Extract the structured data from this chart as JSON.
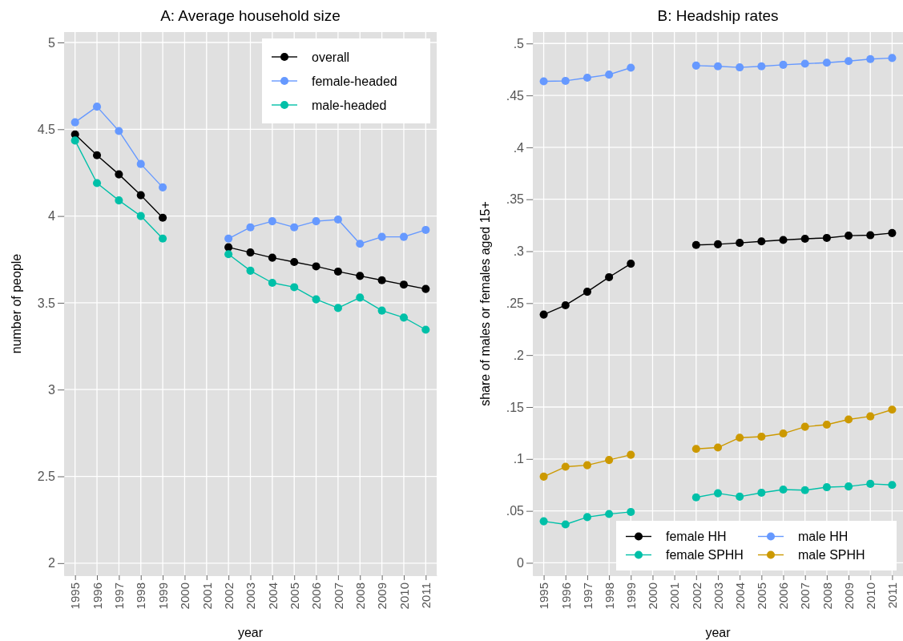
{
  "chart_data": [
    {
      "type": "line",
      "title": "A: Average household size",
      "xlabel": "year",
      "ylabel": "number of people",
      "x": [
        1995,
        1996,
        1997,
        1998,
        1999,
        2000,
        2001,
        2002,
        2003,
        2004,
        2005,
        2006,
        2007,
        2008,
        2009,
        2010,
        2011
      ],
      "xlim": [
        1994.5,
        2011.5
      ],
      "xticks": [
        1995,
        1996,
        1997,
        1998,
        1999,
        2000,
        2001,
        2002,
        2003,
        2004,
        2005,
        2006,
        2007,
        2008,
        2009,
        2010,
        2011
      ],
      "ylim": [
        1.93,
        5.06
      ],
      "yticks": [
        2,
        2.5,
        3,
        3.5,
        4,
        4.5,
        5
      ],
      "grid": true,
      "legend": "top right",
      "marker": "circle",
      "line_style": "solid",
      "series": [
        {
          "name": "overall",
          "color": "#000000",
          "values": [
            4.47,
            4.35,
            4.24,
            4.12,
            3.99,
            null,
            null,
            3.82,
            3.79,
            3.76,
            3.735,
            3.71,
            3.68,
            3.655,
            3.63,
            3.605,
            3.58
          ]
        },
        {
          "name": "female-headed",
          "color": "#6699ff",
          "values": [
            4.54,
            4.63,
            4.49,
            4.3,
            4.165,
            null,
            null,
            3.87,
            3.935,
            3.97,
            3.935,
            3.97,
            3.98,
            3.84,
            3.88,
            3.88,
            3.92
          ]
        },
        {
          "name": "male-headed",
          "color": "#00c0a8",
          "values": [
            4.435,
            4.19,
            4.09,
            4.0,
            3.87,
            null,
            null,
            3.78,
            3.685,
            3.615,
            3.59,
            3.52,
            3.47,
            3.53,
            3.455,
            3.415,
            3.345
          ]
        }
      ]
    },
    {
      "type": "line",
      "title": "B: Headship rates",
      "xlabel": "year",
      "ylabel": "share of males or females aged 15+",
      "x": [
        1995,
        1996,
        1997,
        1998,
        1999,
        2000,
        2001,
        2002,
        2003,
        2004,
        2005,
        2006,
        2007,
        2008,
        2009,
        2010,
        2011
      ],
      "xlim": [
        1994.5,
        2011.5
      ],
      "xticks": [
        1995,
        1996,
        1997,
        1998,
        1999,
        2000,
        2001,
        2002,
        2003,
        2004,
        2005,
        2006,
        2007,
        2008,
        2009,
        2010,
        2011
      ],
      "ylim": [
        -0.012,
        0.511
      ],
      "yticks": [
        0,
        {
          "value": 0.05,
          "label": ".05"
        },
        {
          "value": 0.1,
          "label": ".1"
        },
        {
          "value": 0.15,
          "label": ".15"
        },
        {
          "value": 0.2,
          "label": ".2"
        },
        {
          "value": 0.25,
          "label": ".25"
        },
        {
          "value": 0.3,
          "label": ".3"
        },
        {
          "value": 0.35,
          "label": ".35"
        },
        {
          "value": 0.4,
          "label": ".4"
        },
        {
          "value": 0.45,
          "label": ".45"
        },
        {
          "value": 0.5,
          "label": ".5"
        }
      ],
      "grid": true,
      "legend": "bottom right",
      "marker": "circle",
      "line_style": "solid",
      "series": [
        {
          "name": "female HH",
          "color": "#000000",
          "values": [
            0.239,
            0.248,
            0.261,
            0.275,
            0.288,
            null,
            null,
            0.306,
            0.3067,
            0.308,
            0.3095,
            0.3108,
            0.312,
            0.3128,
            0.315,
            0.3154,
            0.3175
          ]
        },
        {
          "name": "male HH",
          "color": "#6699ff",
          "values": [
            0.4636,
            0.464,
            0.467,
            0.47,
            0.4767,
            null,
            null,
            0.4787,
            0.478,
            0.477,
            0.478,
            0.4795,
            0.4805,
            0.4815,
            0.483,
            0.485,
            0.486
          ]
        },
        {
          "name": "female SPHH",
          "color": "#00c0a8",
          "values": [
            0.04,
            0.037,
            0.044,
            0.047,
            0.049,
            null,
            null,
            0.063,
            0.067,
            0.0637,
            0.0675,
            0.0705,
            0.07,
            0.0728,
            0.0735,
            0.076,
            0.075
          ]
        },
        {
          "name": "male SPHH",
          "color": "#cc9900",
          "values": [
            0.083,
            0.0925,
            0.094,
            0.099,
            0.104,
            null,
            null,
            0.1097,
            0.111,
            0.1205,
            0.1215,
            0.1245,
            0.131,
            0.133,
            0.138,
            0.141,
            0.1475
          ]
        }
      ]
    }
  ]
}
